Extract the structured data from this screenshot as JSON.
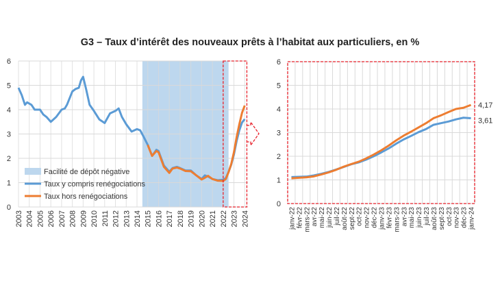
{
  "chart_data": [
    {
      "type": "line",
      "title": "G3 – Taux d’intérêt des nouveaux prêts à l’habitat aux particuliers, en %",
      "xlabel": "",
      "ylabel": "",
      "ylim": [
        0,
        6
      ],
      "yticks": [
        0,
        1,
        2,
        3,
        4,
        5,
        6
      ],
      "xticks": [
        "2003",
        "2004",
        "2005",
        "2006",
        "2007",
        "2008",
        "2009",
        "2010",
        "2011",
        "2012",
        "2013",
        "2014",
        "2015",
        "2016",
        "2017",
        "2018",
        "2019",
        "2020",
        "2021",
        "2022",
        "2023",
        "2024"
      ],
      "grid": true,
      "legend_position": "bottom-left",
      "shaded_region": {
        "name": "Facilité de dépôt négative",
        "from": 2014.5,
        "to": 2022.5,
        "color": "#bdd7ee"
      },
      "highlight_box": {
        "from": 2022.0,
        "to": 2024.2,
        "color": "#e8202a"
      },
      "series": [
        {
          "name": "Taux y compris renégociations",
          "color": "#5b9bd5",
          "x": [
            2003.0,
            2003.3,
            2003.6,
            2003.8,
            2004.2,
            2004.5,
            2005.0,
            2005.3,
            2005.6,
            2006.0,
            2006.5,
            2007.0,
            2007.3,
            2007.5,
            2008.0,
            2008.3,
            2008.6,
            2008.8,
            2009.0,
            2009.3,
            2009.6,
            2010.0,
            2010.5,
            2011.0,
            2011.5,
            2012.0,
            2012.3,
            2012.6,
            2013.0,
            2013.5,
            2014.0,
            2014.3,
            2014.6,
            2015.0,
            2015.4,
            2015.8,
            2016.0,
            2016.5,
            2017.0,
            2017.3,
            2017.7,
            2018.0,
            2018.5,
            2019.0,
            2019.5,
            2020.0,
            2020.3,
            2020.6,
            2021.0,
            2021.5,
            2022.0,
            2022.25,
            2022.5,
            2022.75,
            2023.0,
            2023.25,
            2023.5,
            2023.75,
            2024.0
          ],
          "y": [
            4.9,
            4.6,
            4.2,
            4.3,
            4.2,
            4.0,
            4.0,
            3.8,
            3.7,
            3.5,
            3.7,
            4.0,
            4.05,
            4.2,
            4.75,
            4.85,
            4.9,
            5.2,
            5.35,
            4.8,
            4.2,
            3.95,
            3.6,
            3.45,
            3.85,
            3.95,
            4.05,
            3.7,
            3.4,
            3.1,
            3.2,
            3.15,
            2.9,
            2.55,
            2.1,
            2.35,
            2.3,
            1.7,
            1.45,
            1.6,
            1.65,
            1.6,
            1.5,
            1.5,
            1.3,
            1.15,
            1.3,
            1.25,
            1.15,
            1.1,
            1.12,
            1.19,
            1.44,
            1.74,
            2.16,
            2.71,
            3.15,
            3.47,
            3.61
          ]
        },
        {
          "name": "Taux hors renégociations",
          "color": "#ed7d31",
          "x": [
            2015.0,
            2015.4,
            2015.8,
            2016.0,
            2016.5,
            2017.0,
            2017.3,
            2017.7,
            2018.0,
            2018.5,
            2019.0,
            2019.5,
            2020.0,
            2020.3,
            2020.6,
            2021.0,
            2021.5,
            2022.0,
            2022.25,
            2022.5,
            2022.75,
            2023.0,
            2023.25,
            2023.5,
            2023.75,
            2024.0
          ],
          "y": [
            2.55,
            2.1,
            2.3,
            2.25,
            1.65,
            1.4,
            1.58,
            1.62,
            1.58,
            1.48,
            1.47,
            1.3,
            1.13,
            1.2,
            1.28,
            1.15,
            1.08,
            1.07,
            1.15,
            1.43,
            1.77,
            2.25,
            2.87,
            3.4,
            3.87,
            4.17
          ]
        }
      ]
    },
    {
      "type": "line",
      "ylim": [
        0,
        6
      ],
      "yticks": [
        0,
        1,
        2,
        3,
        4,
        5,
        6
      ],
      "categories": [
        "janv-22",
        "févr-22",
        "mars-22",
        "avr-22",
        "mai-22",
        "juin-22",
        "juil-22",
        "août-22",
        "sept-22",
        "oct-22",
        "nov-22",
        "déc-22",
        "janv-23",
        "févr-23",
        "mars-23",
        "avr-23",
        "mai-23",
        "juin-23",
        "juil-23",
        "août-23",
        "sept-23",
        "oct-23",
        "nov-23",
        "déc-23",
        "janv-24"
      ],
      "grid": true,
      "end_labels": [
        "4,17",
        "3,61"
      ],
      "series": [
        {
          "name": "Taux y compris renégociations",
          "color": "#5b9bd5",
          "values": [
            1.12,
            1.13,
            1.14,
            1.19,
            1.26,
            1.34,
            1.44,
            1.55,
            1.66,
            1.74,
            1.86,
            2.0,
            2.16,
            2.33,
            2.53,
            2.71,
            2.86,
            3.02,
            3.15,
            3.33,
            3.4,
            3.47,
            3.56,
            3.63,
            3.61
          ]
        },
        {
          "name": "Taux hors renégociations",
          "color": "#ed7d31",
          "values": [
            1.07,
            1.09,
            1.11,
            1.15,
            1.23,
            1.32,
            1.43,
            1.56,
            1.67,
            1.77,
            1.91,
            2.07,
            2.25,
            2.45,
            2.67,
            2.87,
            3.04,
            3.22,
            3.4,
            3.61,
            3.73,
            3.87,
            4.0,
            4.05,
            4.17
          ]
        }
      ]
    }
  ]
}
